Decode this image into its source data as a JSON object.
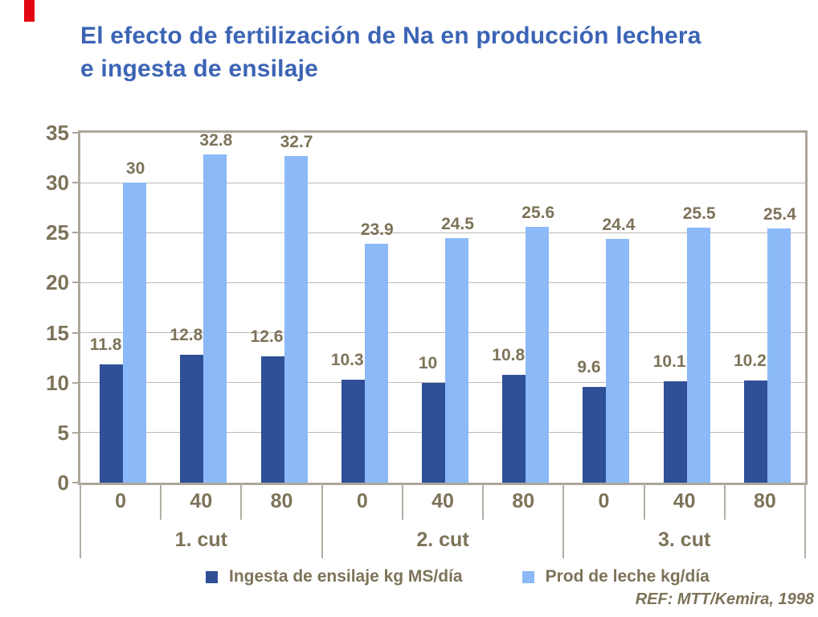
{
  "colors": {
    "title": "#3C64B5",
    "text": "#7D7359",
    "accent_mark": "#E30613",
    "gridline": "#BDB9B2",
    "frame": "#ACA69B",
    "separator": "#B3AEA4"
  },
  "title": {
    "line1": "El efecto de fertilización de Na en producción lechera",
    "line2": "e ingesta de ensilaje"
  },
  "chart_data": {
    "type": "bar",
    "title": "El efecto de fertilización de Na en producción lechera e ingesta de ensilaje",
    "groups": [
      "1. cut",
      "2. cut",
      "3. cut"
    ],
    "categories": [
      "0",
      "40",
      "80",
      "0",
      "40",
      "80",
      "0",
      "40",
      "80"
    ],
    "series": [
      {
        "name": "Ingesta de ensilaje kg MS/día",
        "color": "#2F5096",
        "values": [
          11.8,
          12.8,
          12.6,
          10.3,
          10,
          10.8,
          9.6,
          10.1,
          10.2
        ],
        "labels": [
          "11.8",
          "12.8",
          "12.6",
          "10.3",
          "10",
          "10.8",
          "9.6",
          "10.1",
          "10.2"
        ]
      },
      {
        "name": "Prod de leche kg/día",
        "color": "#8CB9F8",
        "values": [
          30,
          32.8,
          32.7,
          23.9,
          24.5,
          25.6,
          24.4,
          25.5,
          25.4
        ],
        "labels": [
          "30",
          "32.8",
          "32.7",
          "23.9",
          "24.5",
          "25.6",
          "24.4",
          "25.5",
          "25.4"
        ]
      }
    ],
    "ylim": [
      0,
      35
    ],
    "y_ticks": [
      0,
      5,
      10,
      15,
      20,
      25,
      30,
      35
    ],
    "grid": true,
    "legend_position": "bottom"
  },
  "footer": {
    "ref": "REF: MTT/Kemira, 1998"
  }
}
